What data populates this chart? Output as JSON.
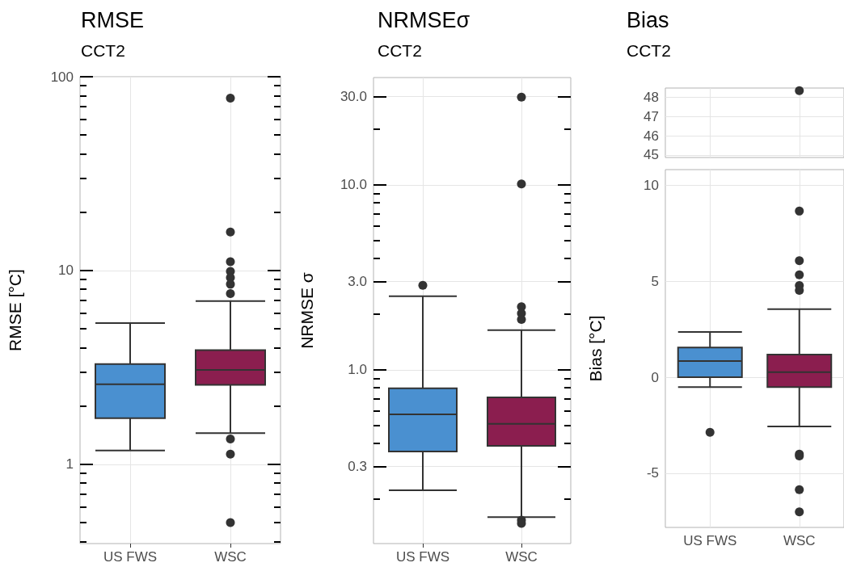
{
  "chart_data": [
    {
      "type": "box",
      "title": "RMSE",
      "subtitle": "CCT2",
      "ylabel": "RMSE [°C]",
      "categories": [
        "US FWS",
        "WSC"
      ],
      "colors": [
        "#4a90d0",
        "#8b1e4f"
      ],
      "log": true,
      "grid": true,
      "ylim": [
        0.39,
        100
      ],
      "yticks": [
        {
          "value": 0.4,
          "label": null
        },
        {
          "value": 0.5,
          "label": null
        },
        {
          "value": 0.6,
          "label": null
        },
        {
          "value": 0.7,
          "label": null
        },
        {
          "value": 0.8,
          "label": null
        },
        {
          "value": 0.9,
          "label": null
        },
        1,
        {
          "value": 2,
          "label": null
        },
        {
          "value": 3,
          "label": null
        },
        {
          "value": 4,
          "label": null
        },
        {
          "value": 5,
          "label": null
        },
        {
          "value": 6,
          "label": null
        },
        {
          "value": 7,
          "label": null
        },
        {
          "value": 8,
          "label": null
        },
        {
          "value": 9,
          "label": null
        },
        10,
        {
          "value": 20,
          "label": null
        },
        {
          "value": 30,
          "label": null
        },
        {
          "value": 40,
          "label": null
        },
        {
          "value": 50,
          "label": null
        },
        {
          "value": 60,
          "label": null
        },
        {
          "value": 70,
          "label": null
        },
        {
          "value": 80,
          "label": null
        },
        {
          "value": 90,
          "label": null
        },
        100
      ],
      "boxes": [
        {
          "low": 1.18,
          "q1": 1.73,
          "median": 2.59,
          "q3": 3.29,
          "high": 5.36
        },
        {
          "low": 1.45,
          "q1": 2.57,
          "median": 3.07,
          "q3": 3.88,
          "high": 6.96,
          "outliers": [
            77.6,
            15.8,
            11.1,
            9.9,
            9.2,
            8.5,
            7.6,
            1.35,
            1.13,
            0.5
          ]
        }
      ]
    },
    {
      "type": "box",
      "title": "NRMSEσ",
      "subtitle": "CCT2",
      "ylabel": "NRMSE σ",
      "categories": [
        "US FWS",
        "WSC"
      ],
      "colors": [
        "#4a90d0",
        "#8b1e4f"
      ],
      "log": true,
      "grid": true,
      "ylim": [
        0.115,
        38
      ],
      "yticks": [
        {
          "value": 0.2,
          "label": null
        },
        {
          "value": 0.3,
          "label": "0.3"
        },
        {
          "value": 0.4,
          "label": null
        },
        {
          "value": 0.5,
          "label": null
        },
        {
          "value": 0.6,
          "label": null
        },
        {
          "value": 0.7,
          "label": null
        },
        {
          "value": 0.8,
          "label": null
        },
        {
          "value": 0.9,
          "label": null
        },
        {
          "value": 1,
          "label": "1.0"
        },
        {
          "value": 2,
          "label": null
        },
        {
          "value": 3,
          "label": "3.0"
        },
        {
          "value": 4,
          "label": null
        },
        {
          "value": 5,
          "label": null
        },
        {
          "value": 6,
          "label": null
        },
        {
          "value": 7,
          "label": null
        },
        {
          "value": 8,
          "label": null
        },
        {
          "value": 9,
          "label": null
        },
        {
          "value": 10,
          "label": "10.0"
        },
        {
          "value": 20,
          "label": null
        },
        {
          "value": 30,
          "label": "30.0"
        }
      ],
      "boxes": [
        {
          "low": 0.223,
          "q1": 0.362,
          "median": 0.575,
          "q3": 0.795,
          "high": 2.5,
          "outliers": [
            2.86
          ]
        },
        {
          "low": 0.16,
          "q1": 0.388,
          "median": 0.51,
          "q3": 0.71,
          "high": 1.64,
          "outliers": [
            29.8,
            10.1,
            2.19,
            2.02,
            1.87,
            0.154,
            0.148
          ]
        }
      ]
    },
    {
      "type": "scatter",
      "title": "Bias",
      "subtitle": "CCT2",
      "categories": [
        null,
        null
      ],
      "values": [
        null,
        48.33
      ],
      "color": "#333333",
      "marker": "circle",
      "grid": true,
      "tick_labels": "y",
      "ylim": [
        44.87,
        48.47
      ],
      "yticks": [
        45,
        46,
        47,
        48
      ]
    },
    {
      "type": "box",
      "ylabel": "Bias [°C]",
      "categories": [
        "US FWS",
        "WSC"
      ],
      "colors": [
        "#4a90d0",
        "#8b1e4f"
      ],
      "grid": true,
      "ylim": [
        -7.82,
        10.81
      ],
      "yticks": [
        -5,
        0,
        5,
        10
      ],
      "boxes": [
        {
          "low": -0.51,
          "q1": 0,
          "median": 0.84,
          "q3": 1.55,
          "high": 2.36,
          "outliers": [
            -2.87
          ]
        },
        {
          "low": -2.56,
          "q1": -0.51,
          "median": 0.27,
          "q3": 1.18,
          "high": 3.54,
          "outliers": [
            8.65,
            6.07,
            5.33,
            4.77,
            4.52,
            -4.0,
            -4.1,
            -5.85,
            -7.01
          ]
        }
      ]
    }
  ]
}
